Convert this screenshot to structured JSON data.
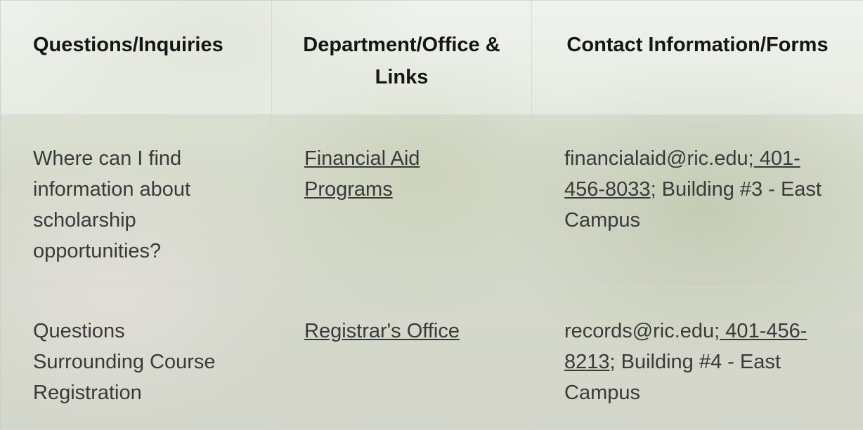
{
  "header": {
    "question": "Questions/Inquiries",
    "department": "Department/Office & Links",
    "contact": "Contact Information/Forms"
  },
  "rows": [
    {
      "question": "Where can I find information about scholarship opportunities?",
      "department": "Financial Aid Programs",
      "contact": {
        "email": "financialaid@ric.edu;",
        "phone": " 401-456-8033",
        "rest": "; Building #3 - East Campus"
      }
    },
    {
      "question": "Questions Surrounding Course Registration",
      "department": "Registrar's Office",
      "contact": {
        "email": "records@ric.edu;",
        "phone": " 401-456-8213",
        "rest": "; Building #4 - East Campus"
      }
    }
  ]
}
